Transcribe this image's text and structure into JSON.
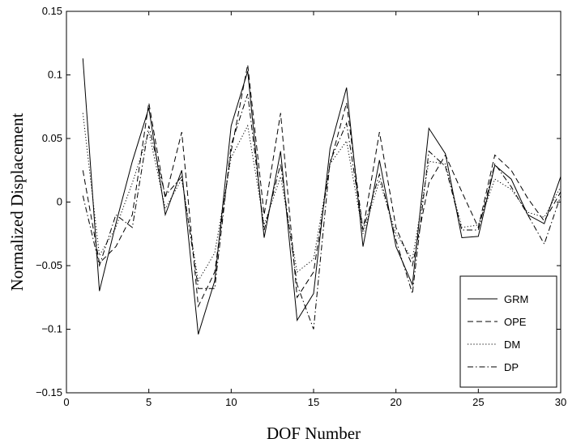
{
  "chart_data": {
    "type": "line",
    "title": "",
    "xlabel": "DOF Number",
    "ylabel": "Normalized Displacement",
    "xlim": [
      0,
      30
    ],
    "ylim": [
      -0.15,
      0.15
    ],
    "xticks": [
      0,
      5,
      10,
      15,
      20,
      25,
      30
    ],
    "xtick_labels": [
      "0",
      "5",
      "10",
      "15",
      "20",
      "25",
      "30"
    ],
    "yticks": [
      -0.15,
      -0.1,
      -0.05,
      0,
      0.05,
      0.1,
      0.15
    ],
    "ytick_labels": [
      "−0.15",
      "−0.1",
      "−0.05",
      "0",
      "0.05",
      "0.1",
      "0.15"
    ],
    "grid": false,
    "legend_position": "bottom-right",
    "x": [
      1,
      2,
      3,
      4,
      5,
      6,
      7,
      8,
      9,
      10,
      11,
      12,
      13,
      14,
      15,
      16,
      17,
      18,
      19,
      20,
      21,
      22,
      23,
      24,
      25,
      26,
      27,
      28,
      29,
      30
    ],
    "series": [
      {
        "name": "GRM",
        "style": "solid",
        "values": [
          0.113,
          -0.07,
          -0.017,
          0.032,
          0.074,
          -0.01,
          0.025,
          -0.104,
          -0.062,
          0.06,
          0.103,
          -0.028,
          0.04,
          -0.093,
          -0.072,
          0.042,
          0.09,
          -0.035,
          0.033,
          -0.035,
          -0.065,
          0.058,
          0.038,
          -0.028,
          -0.027,
          0.029,
          0.018,
          -0.01,
          -0.017,
          0.02
        ]
      },
      {
        "name": "OPE",
        "style": "dashed",
        "values": [
          0.025,
          -0.048,
          -0.035,
          -0.01,
          0.078,
          0.003,
          0.055,
          -0.082,
          -0.055,
          0.04,
          0.108,
          -0.01,
          0.07,
          -0.075,
          -0.055,
          0.03,
          0.078,
          -0.022,
          0.055,
          -0.02,
          -0.05,
          0.015,
          0.037,
          0.008,
          -0.02,
          0.037,
          0.025,
          0.003,
          -0.015,
          0.008
        ]
      },
      {
        "name": "DM",
        "style": "dotted",
        "values": [
          0.07,
          -0.042,
          -0.02,
          0.015,
          0.055,
          -0.005,
          0.018,
          -0.062,
          -0.04,
          0.035,
          0.06,
          -0.018,
          0.02,
          -0.055,
          -0.045,
          0.03,
          0.048,
          -0.025,
          0.017,
          -0.025,
          -0.045,
          0.032,
          0.03,
          -0.02,
          -0.018,
          0.018,
          0.01,
          -0.008,
          -0.012,
          0.012
        ]
      },
      {
        "name": "DP",
        "style": "dashdot",
        "values": [
          0.005,
          -0.05,
          -0.01,
          -0.02,
          0.06,
          0.005,
          0.02,
          -0.068,
          -0.068,
          0.045,
          0.085,
          -0.022,
          0.03,
          -0.065,
          -0.1,
          0.032,
          0.062,
          -0.022,
          0.022,
          -0.03,
          -0.072,
          0.04,
          0.028,
          -0.022,
          -0.022,
          0.03,
          0.012,
          -0.01,
          -0.033,
          0.005
        ]
      }
    ],
    "colors": {
      "line": "#000000",
      "background": "#ffffff"
    }
  }
}
